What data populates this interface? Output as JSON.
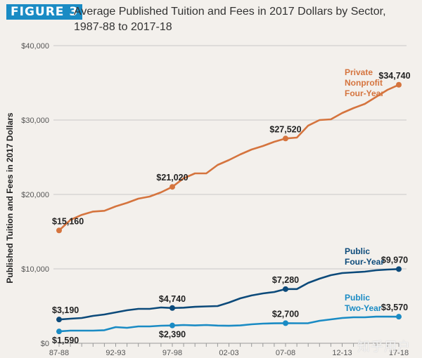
{
  "header": {
    "figure_badge": "FIGURE 3",
    "title_line1": "Average Published Tuition and Fees in 2017 Dollars by Sector,",
    "title_line2": "1987-88 to 2017-18"
  },
  "watermark": "知乎用户",
  "colors": {
    "private": "#d5743e",
    "public4": "#0c4a7a",
    "public2": "#1a8bc4",
    "badge": "#1a8bc4",
    "grid": "#c8c8c8",
    "background": "#f3f0ec"
  },
  "chart_data": {
    "type": "line",
    "title": "Average Published Tuition and Fees in 2017 Dollars by Sector, 1987-88 to 2017-18",
    "xlabel": "",
    "ylabel": "Published Tuition and Fees in 2017 Dollars",
    "ylim": [
      0,
      40000
    ],
    "yticks": [
      0,
      10000,
      20000,
      30000,
      40000
    ],
    "ytick_labels": [
      "$0",
      "$10,000",
      "$20,000",
      "$30,000",
      "$40,000"
    ],
    "grid": true,
    "x": [
      "87-88",
      "88-89",
      "89-90",
      "90-91",
      "91-92",
      "92-93",
      "93-94",
      "94-95",
      "95-96",
      "96-97",
      "97-98",
      "98-99",
      "99-00",
      "00-01",
      "01-02",
      "02-03",
      "03-04",
      "04-05",
      "05-06",
      "06-07",
      "07-08",
      "08-09",
      "09-10",
      "10-11",
      "11-12",
      "12-13",
      "13-14",
      "14-15",
      "15-16",
      "16-17",
      "17-18"
    ],
    "xtick_labels": [
      "87-88",
      "92-93",
      "97-98",
      "02-03",
      "07-08",
      "12-13",
      "17-18"
    ],
    "xtick_label_indices": [
      0,
      5,
      10,
      15,
      20,
      25,
      30
    ],
    "series": [
      {
        "name": "Private Nonprofit Four-Year",
        "label_lines": [
          "Private",
          "Nonprofit",
          "Four-Year"
        ],
        "color_key": "private",
        "values": [
          15160,
          16580,
          17250,
          17700,
          17800,
          18400,
          18870,
          19430,
          19720,
          20280,
          21020,
          22170,
          22830,
          22830,
          23960,
          24620,
          25380,
          26040,
          26510,
          27080,
          27520,
          27640,
          29250,
          30000,
          30090,
          30940,
          31600,
          32170,
          33110,
          34060,
          34740
        ],
        "annotations": [
          {
            "index": 0,
            "text": "$15,160",
            "pos": "above"
          },
          {
            "index": 10,
            "text": "$21,020",
            "pos": "above"
          },
          {
            "index": 20,
            "text": "$27,520",
            "pos": "above"
          },
          {
            "index": 30,
            "text": "$34,740",
            "pos": "above"
          }
        ]
      },
      {
        "name": "Public Four-Year",
        "label_lines": [
          "Public",
          "Four-Year"
        ],
        "color_key": "public4",
        "values": [
          3190,
          3300,
          3400,
          3680,
          3870,
          4150,
          4430,
          4620,
          4620,
          4810,
          4740,
          4780,
          4900,
          4950,
          5000,
          5470,
          6040,
          6420,
          6700,
          6890,
          7280,
          7280,
          8110,
          8680,
          9150,
          9430,
          9530,
          9620,
          9810,
          9910,
          9970
        ],
        "annotations": [
          {
            "index": 0,
            "text": "$3,190",
            "pos": "above"
          },
          {
            "index": 10,
            "text": "$4,740",
            "pos": "above"
          },
          {
            "index": 20,
            "text": "$7,280",
            "pos": "above"
          },
          {
            "index": 30,
            "text": "$9,970",
            "pos": "above"
          }
        ]
      },
      {
        "name": "Public Two-Year",
        "label_lines": [
          "Public",
          "Two-Year"
        ],
        "color_key": "public2",
        "values": [
          1590,
          1700,
          1700,
          1700,
          1750,
          2170,
          2080,
          2260,
          2260,
          2360,
          2390,
          2450,
          2400,
          2450,
          2380,
          2350,
          2400,
          2550,
          2640,
          2680,
          2700,
          2690,
          2700,
          3020,
          3210,
          3400,
          3490,
          3490,
          3580,
          3580,
          3570
        ],
        "annotations": [
          {
            "index": 0,
            "text": "$1,590",
            "pos": "below"
          },
          {
            "index": 10,
            "text": "$2,390",
            "pos": "below"
          },
          {
            "index": 20,
            "text": "$2,700",
            "pos": "above"
          },
          {
            "index": 30,
            "text": "$3,570",
            "pos": "above"
          }
        ]
      }
    ]
  }
}
